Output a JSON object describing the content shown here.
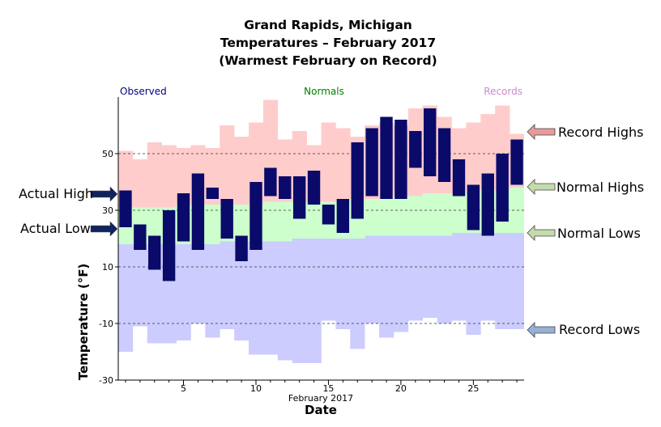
{
  "titles": [
    "Grand Rapids, Michigan",
    "Temperatures – February 2017",
    "(Warmest February on Record)"
  ],
  "legend": {
    "observed": "Observed",
    "normals": "Normals",
    "records": "Records"
  },
  "callouts": {
    "actual_high": "Actual High",
    "actual_low": "Actual Low",
    "record_highs": "Record Highs",
    "normal_highs": "Normal Highs",
    "normal_lows": "Normal Lows",
    "record_lows": "Record Lows"
  },
  "colors": {
    "observed": "#0a0a6a",
    "normal": "#ccffcc",
    "record_high": "#ffcccc",
    "record_low": "#ccccff",
    "observed_text": "#000080",
    "normals_text": "#008000",
    "records_text": "#cc88cc",
    "arrow_actual": "#10245c",
    "arrow_record_high": "#e89a9a",
    "arrow_normal": "#c4dcaa",
    "arrow_record_low": "#98b0d4"
  },
  "chart_data": {
    "type": "bar",
    "title": "",
    "xlabel": "Date",
    "xsublabel": "February 2017",
    "ylabel": "Temperature (°F)",
    "ylim": [
      -30,
      70
    ],
    "xlim": [
      0.5,
      28.5
    ],
    "yticks": [
      -30,
      -10,
      10,
      30,
      50
    ],
    "xticks": [
      5,
      10,
      15,
      20,
      25
    ],
    "grid": "dashed horizontal at -10, 10, 30, 50",
    "days": [
      1,
      2,
      3,
      4,
      5,
      6,
      7,
      8,
      9,
      10,
      11,
      12,
      13,
      14,
      15,
      16,
      17,
      18,
      19,
      20,
      21,
      22,
      23,
      24,
      25,
      26,
      27,
      28
    ],
    "observed_high": [
      37,
      25,
      21,
      30,
      36,
      43,
      38,
      34,
      21,
      40,
      45,
      42,
      42,
      44,
      32,
      34,
      54,
      59,
      63,
      62,
      58,
      66,
      59,
      48,
      39,
      43,
      50,
      55
    ],
    "observed_low": [
      24,
      16,
      9,
      5,
      19,
      16,
      34,
      20,
      12,
      16,
      35,
      34,
      27,
      32,
      25,
      22,
      27,
      35,
      34,
      34,
      45,
      42,
      40,
      35,
      23,
      21,
      26,
      39
    ],
    "normal_high": [
      31,
      31,
      31,
      31,
      32,
      32,
      32,
      32,
      32,
      32,
      33,
      33,
      33,
      33,
      33,
      33,
      34,
      34,
      34,
      35,
      35,
      36,
      36,
      36,
      37,
      37,
      37,
      38
    ],
    "normal_low": [
      18,
      18,
      18,
      18,
      18,
      18,
      18,
      19,
      19,
      19,
      19,
      19,
      20,
      20,
      20,
      20,
      20,
      21,
      21,
      21,
      21,
      21,
      21,
      22,
      22,
      22,
      22,
      22
    ],
    "record_high": [
      51,
      48,
      54,
      53,
      52,
      53,
      52,
      60,
      56,
      61,
      69,
      55,
      58,
      53,
      61,
      59,
      56,
      60,
      61,
      60,
      66,
      67,
      63,
      59,
      61,
      64,
      67,
      57
    ],
    "record_low": [
      -20,
      -11,
      -17,
      -17,
      -16,
      -10,
      -15,
      -12,
      -16,
      -21,
      -21,
      -23,
      -24,
      -24,
      -9,
      -12,
      -19,
      -10,
      -15,
      -13,
      -9,
      -8,
      -10,
      -9,
      -14,
      -9,
      -12,
      -12
    ]
  }
}
